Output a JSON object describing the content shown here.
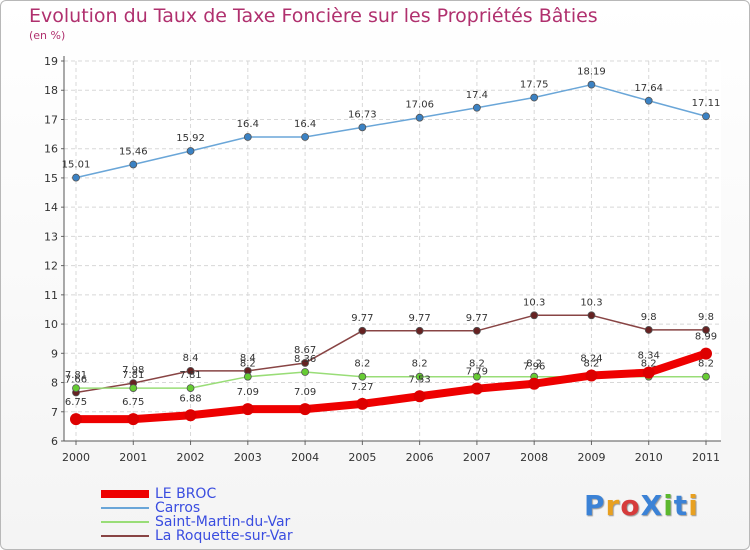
{
  "title": "Evolution du Taux de Taxe Foncière sur les Propriétés Bâties",
  "subtitle": "(en %)",
  "brand": "ProXiti",
  "brand_colors": [
    "#3b82d6",
    "#e8a020",
    "#d63b3b",
    "#3b82d6",
    "#5cb82e",
    "#3b82d6",
    "#e8a020"
  ],
  "chart_data": {
    "type": "line",
    "x": [
      "2000",
      "2001",
      "2002",
      "2003",
      "2004",
      "2005",
      "2006",
      "2007",
      "2008",
      "2009",
      "2010",
      "2011"
    ],
    "ylim": [
      6,
      19
    ],
    "yticks": [
      "6",
      "7",
      "8",
      "9",
      "10",
      "11",
      "12",
      "13",
      "14",
      "15",
      "16",
      "17",
      "18",
      "19"
    ],
    "grid": true,
    "legend_placement": "bottom-left",
    "series": [
      {
        "name": "LE BROC",
        "color": "#ee0000",
        "marker": "#dd0000",
        "values": [
          6.75,
          6.75,
          6.88,
          7.09,
          7.09,
          7.27,
          7.53,
          7.79,
          7.96,
          8.24,
          8.34,
          8.99
        ],
        "labels": [
          "6.75",
          "6.75",
          "6.88",
          "7.09",
          "7.09",
          "7.27",
          "7.53",
          "7.79",
          "7.96",
          "8.24",
          "8.34",
          "8.99"
        ]
      },
      {
        "name": "Carros",
        "color": "#6aa6d8",
        "marker": "#3b82c4",
        "values": [
          15.01,
          15.46,
          15.92,
          16.4,
          16.4,
          16.73,
          17.06,
          17.4,
          17.75,
          18.19,
          17.64,
          17.11
        ],
        "labels": [
          "15.01",
          "15.46",
          "15.92",
          "16.4",
          "16.4",
          "16.73",
          "17.06",
          "17.4",
          "17.75",
          "18.19",
          "17.64",
          "17.11"
        ]
      },
      {
        "name": "Saint-Martin-du-Var",
        "color": "#99dd77",
        "marker": "#66cc33",
        "values": [
          7.81,
          7.81,
          7.81,
          8.2,
          8.36,
          8.2,
          8.2,
          8.2,
          8.2,
          8.2,
          8.2,
          8.2
        ],
        "labels": [
          "7.81",
          "7.81",
          "7.81",
          "8.2",
          "8.36",
          "8.2",
          "8.2",
          "8.2",
          "8.2",
          "8.2",
          "8.2",
          "8.2"
        ]
      },
      {
        "name": "La Roquette-sur-Var",
        "color": "#884444",
        "marker": "#662222",
        "values": [
          7.66,
          7.98,
          8.4,
          8.4,
          8.67,
          9.77,
          9.77,
          9.77,
          10.3,
          10.3,
          9.8,
          9.8
        ],
        "labels": [
          "7.66",
          "7.98",
          "8.4",
          "8.4",
          "8.67",
          "9.77",
          "9.77",
          "9.77",
          "10.3",
          "10.3",
          "9.8",
          "9.8"
        ]
      }
    ]
  }
}
